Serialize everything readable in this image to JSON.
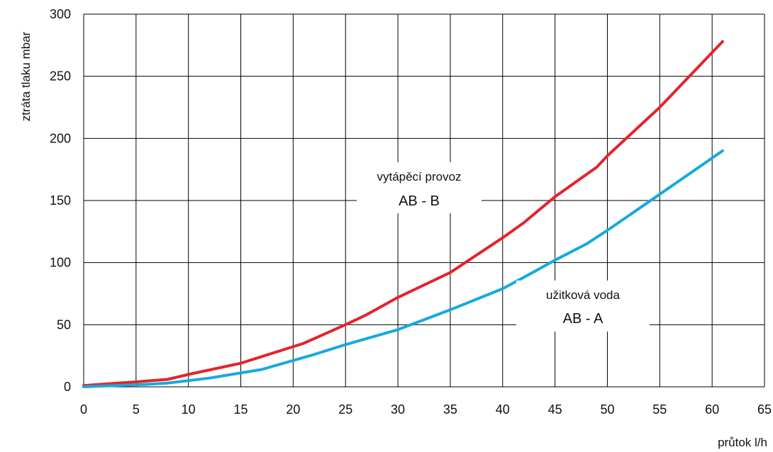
{
  "chart_data": {
    "type": "line",
    "xlabel": "průtok l/h",
    "ylabel": "ztráta tlaku mbar",
    "xlim": [
      0,
      65
    ],
    "ylim": [
      0,
      300
    ],
    "xticks": [
      0,
      5,
      10,
      15,
      20,
      25,
      30,
      35,
      40,
      45,
      50,
      55,
      60,
      65
    ],
    "yticks": [
      0,
      50,
      100,
      150,
      200,
      250,
      300
    ],
    "grid": true,
    "series": [
      {
        "name": "vytápěcí provoz AB - B",
        "color": "#e3232b",
        "x": [
          0,
          5,
          8,
          10,
          15,
          21,
          25,
          27,
          30,
          35,
          40,
          42,
          45,
          49,
          50,
          55,
          61
        ],
        "y": [
          1,
          4,
          6,
          10,
          19,
          35,
          50,
          58,
          72,
          92,
          120,
          132,
          153,
          177,
          186,
          225,
          278
        ]
      },
      {
        "name": "užitková voda AB - A",
        "color": "#16a9e1",
        "x": [
          0,
          6,
          8,
          12,
          17,
          22,
          25,
          30,
          35,
          40,
          42,
          45,
          48,
          50,
          55,
          61
        ],
        "y": [
          0,
          2,
          3,
          7,
          14,
          26,
          34,
          46,
          62,
          79,
          88,
          102,
          115,
          126,
          155,
          190
        ]
      }
    ],
    "annotations": [
      {
        "line1": "vytápěcí provoz",
        "line2": "AB - B"
      },
      {
        "line1": "užitková voda",
        "line2": "AB - A"
      }
    ]
  }
}
